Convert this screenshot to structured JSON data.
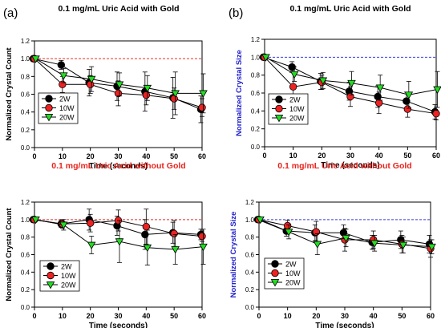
{
  "figure": {
    "panel_labels": [
      "(a)",
      "(b)"
    ],
    "colors": {
      "series": [
        "#000000",
        "#ee2222",
        "#22dd22"
      ],
      "ref_red": "#e03030",
      "ref_blue": "#3a3adf",
      "title_black": "#000000",
      "title_red": "#e8231c",
      "ylabel_blue": "#2222cc"
    }
  },
  "chart_data": [
    {
      "type": "line",
      "title": "0.1 mg/mL Uric Acid with Gold",
      "title_color": "#000000",
      "xlabel": "Time (seconds)",
      "ylabel": "Normalized Crystal Count",
      "ylabel_color": "#000000",
      "xlim": [
        0,
        60
      ],
      "ylim": [
        0,
        1.2
      ],
      "xticks": [
        0,
        10,
        20,
        30,
        40,
        50,
        60
      ],
      "yticks": [
        0.0,
        0.2,
        0.4,
        0.6,
        0.8,
        1.0,
        1.2
      ],
      "reference_line": {
        "y": 1.0,
        "color": "#e03030",
        "style": "dashed"
      },
      "legend_placement": "bottom-left",
      "grid": false,
      "x": [
        0,
        10,
        20,
        30,
        40,
        50,
        60
      ],
      "series": [
        {
          "name": "2W",
          "marker": "circle",
          "color": "#000000",
          "values": [
            1.0,
            0.93,
            0.73,
            0.69,
            0.63,
            0.56,
            0.43
          ],
          "errors": [
            0.0,
            0.05,
            0.15,
            0.16,
            0.22,
            0.23,
            0.15
          ]
        },
        {
          "name": "10W",
          "marker": "circle",
          "color": "#ee2222",
          "values": [
            1.0,
            0.71,
            0.71,
            0.61,
            0.59,
            0.55,
            0.45
          ],
          "errors": [
            0.0,
            0.09,
            0.1,
            0.14,
            0.11,
            0.12,
            0.1
          ]
        },
        {
          "name": "20W",
          "marker": "triangle",
          "color": "#22dd22",
          "values": [
            1.0,
            0.81,
            0.77,
            0.71,
            0.67,
            0.61,
            0.61
          ],
          "errors": [
            0.0,
            0.08,
            0.14,
            0.13,
            0.14,
            0.24,
            0.22
          ]
        }
      ]
    },
    {
      "type": "line",
      "title": "0.1 mg/mL Uric Acid with Gold",
      "title_color": "#000000",
      "xlabel": "Time (seconds)",
      "ylabel": "Normalized Crystal Size",
      "ylabel_color": "#2222cc",
      "xlim": [
        0,
        60
      ],
      "ylim": [
        0,
        1.2
      ],
      "xticks": [
        0,
        10,
        20,
        30,
        40,
        50,
        60
      ],
      "yticks": [
        0.0,
        0.2,
        0.4,
        0.6,
        0.8,
        1.0,
        1.2
      ],
      "reference_line": {
        "y": 1.0,
        "color": "#3a3adf",
        "style": "dashed"
      },
      "legend_placement": "bottom-left",
      "grid": false,
      "x": [
        0,
        10,
        20,
        30,
        40,
        50,
        60
      ],
      "series": [
        {
          "name": "2W",
          "marker": "circle",
          "color": "#000000",
          "values": [
            1.0,
            0.89,
            0.73,
            0.62,
            0.56,
            0.51,
            0.39
          ],
          "errors": [
            0.0,
            0.06,
            0.09,
            0.1,
            0.12,
            0.1,
            0.08
          ]
        },
        {
          "name": "10W",
          "marker": "circle",
          "color": "#ee2222",
          "values": [
            1.0,
            0.67,
            0.72,
            0.56,
            0.49,
            0.42,
            0.37
          ],
          "errors": [
            0.0,
            0.22,
            0.08,
            0.11,
            0.12,
            0.09,
            0.07
          ]
        },
        {
          "name": "20W",
          "marker": "triangle",
          "color": "#22dd22",
          "values": [
            1.0,
            0.81,
            0.74,
            0.71,
            0.66,
            0.58,
            0.64
          ],
          "errors": [
            0.0,
            0.08,
            0.09,
            0.13,
            0.14,
            0.15,
            0.2
          ]
        }
      ]
    },
    {
      "type": "line",
      "title": "0.1 mg/mL Uric Acid without Gold",
      "title_color": "#e8231c",
      "xlabel": "Time (seconds)",
      "ylabel": "Normalized Crystal Count",
      "ylabel_color": "#000000",
      "xlim": [
        0,
        60
      ],
      "ylim": [
        0,
        1.2
      ],
      "xticks": [
        0,
        10,
        20,
        30,
        40,
        50,
        60
      ],
      "yticks": [
        0.0,
        0.2,
        0.4,
        0.6,
        0.8,
        1.0,
        1.2
      ],
      "reference_line": {
        "y": 1.0,
        "color": "#e03030",
        "style": "dashed"
      },
      "legend_placement": "bottom-left",
      "grid": false,
      "x": [
        0,
        10,
        20,
        30,
        40,
        50,
        60
      ],
      "series": [
        {
          "name": "2W",
          "marker": "circle",
          "color": "#000000",
          "values": [
            1.0,
            0.95,
            1.0,
            0.93,
            0.83,
            0.85,
            0.83
          ],
          "errors": [
            0.0,
            0.04,
            0.12,
            0.11,
            0.17,
            0.12,
            0.06
          ]
        },
        {
          "name": "10W",
          "marker": "circle",
          "color": "#ee2222",
          "values": [
            1.0,
            0.95,
            0.96,
            0.99,
            0.92,
            0.84,
            0.81
          ],
          "errors": [
            0.0,
            0.05,
            0.1,
            0.12,
            0.2,
            0.15,
            0.06
          ]
        },
        {
          "name": "20W",
          "marker": "triangle",
          "color": "#22dd22",
          "values": [
            1.0,
            0.94,
            0.71,
            0.75,
            0.68,
            0.66,
            0.69
          ],
          "errors": [
            0.0,
            0.06,
            0.1,
            0.24,
            0.2,
            0.17,
            0.2
          ]
        }
      ]
    },
    {
      "type": "line",
      "title": "0.1 mg/mL Uric Acid without Gold",
      "title_color": "#e8231c",
      "xlabel": "Time (seconds)",
      "ylabel": "Normalized Crystal Size",
      "ylabel_color": "#2222cc",
      "xlim": [
        0,
        60
      ],
      "ylim": [
        0,
        1.2
      ],
      "xticks": [
        0,
        10,
        20,
        30,
        40,
        50,
        60
      ],
      "yticks": [
        0.0,
        0.2,
        0.4,
        0.6,
        0.8,
        1.0,
        1.2
      ],
      "reference_line": {
        "y": 1.0,
        "color": "#3a3adf",
        "style": "dashed"
      },
      "legend_placement": "bottom-left",
      "grid": false,
      "x": [
        0,
        10,
        20,
        30,
        40,
        50,
        60
      ],
      "series": [
        {
          "name": "2W",
          "marker": "circle",
          "color": "#000000",
          "values": [
            1.0,
            0.87,
            0.85,
            0.85,
            0.74,
            0.77,
            0.72
          ],
          "errors": [
            0.0,
            0.06,
            0.09,
            0.09,
            0.08,
            0.1,
            0.1
          ]
        },
        {
          "name": "10W",
          "marker": "circle",
          "color": "#ee2222",
          "values": [
            1.0,
            0.93,
            0.86,
            0.77,
            0.77,
            0.72,
            0.67
          ],
          "errors": [
            0.0,
            0.06,
            0.12,
            0.13,
            0.1,
            0.1,
            0.1
          ]
        },
        {
          "name": "20W",
          "marker": "triangle",
          "color": "#22dd22",
          "values": [
            1.0,
            0.86,
            0.72,
            0.79,
            0.73,
            0.71,
            0.69
          ],
          "errors": [
            0.0,
            0.08,
            0.12,
            0.1,
            0.09,
            0.09,
            0.08
          ]
        }
      ]
    }
  ]
}
